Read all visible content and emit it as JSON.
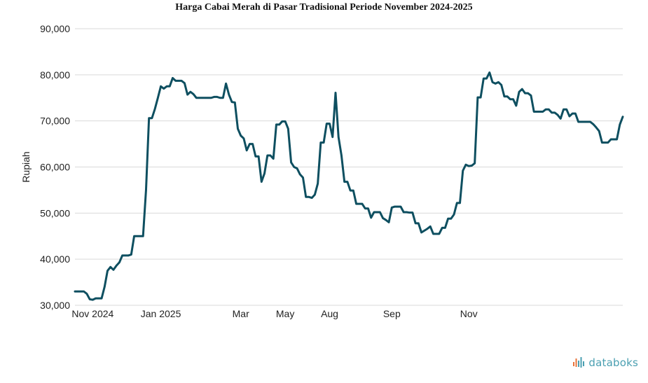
{
  "chart_data": {
    "type": "line",
    "title": "Harga Cabai Merah di Pasar Tradisional Periode November 2024-2025",
    "ylabel": "Rupiah",
    "xlabel": "",
    "ylim": [
      30000,
      90000
    ],
    "y_ticks": [
      "30,000",
      "40,000",
      "50,000",
      "60,000",
      "70,000",
      "80,000",
      "90,000"
    ],
    "x_tick_labels": [
      {
        "label": "Nov 2024",
        "index": 6
      },
      {
        "label": "Jan 2025",
        "index": 29
      },
      {
        "label": "Mar",
        "index": 56
      },
      {
        "label": "May",
        "index": 71
      },
      {
        "label": "Aug",
        "index": 86
      },
      {
        "label": "Sep",
        "index": 107
      },
      {
        "label": "Nov",
        "index": 133
      }
    ],
    "grid": true,
    "line_color": "#0e4f60",
    "series": [
      {
        "values": [
          33000,
          33000,
          33000,
          33000,
          32500,
          31300,
          31200,
          31500,
          31500,
          31500,
          34000,
          37500,
          38300,
          37700,
          38600,
          39300,
          40800,
          40800,
          40800,
          41000,
          45000,
          45000,
          45000,
          45000,
          55000,
          70600,
          70600,
          72600,
          75000,
          77500,
          77000,
          77500,
          77500,
          79300,
          78700,
          78700,
          78700,
          78200,
          75700,
          76300,
          75800,
          75000,
          75000,
          75000,
          75000,
          75000,
          75000,
          75200,
          75200,
          75000,
          75000,
          78100,
          75700,
          74100,
          74000,
          68300,
          66800,
          66200,
          63600,
          65000,
          65000,
          62300,
          62300,
          56800,
          58600,
          62500,
          62500,
          61800,
          69200,
          69200,
          69900,
          69900,
          68300,
          61000,
          60000,
          59700,
          58400,
          57700,
          53500,
          53500,
          53300,
          54000,
          56400,
          65300,
          65300,
          69400,
          69400,
          66500,
          76100,
          66500,
          62500,
          56800,
          56800,
          54900,
          54900,
          52000,
          52000,
          52000,
          51000,
          51000,
          49000,
          50200,
          50200,
          50200,
          48900,
          48500,
          48000,
          51200,
          51400,
          51400,
          51400,
          50200,
          50200,
          50100,
          50100,
          47800,
          47800,
          45800,
          46200,
          46600,
          47100,
          45500,
          45500,
          45500,
          46800,
          46800,
          48800,
          48800,
          49700,
          52200,
          52200,
          59200,
          60500,
          60200,
          60300,
          60800,
          75100,
          75100,
          79200,
          79200,
          80500,
          78400,
          78100,
          78400,
          77800,
          75300,
          75300,
          74700,
          74700,
          73300,
          76300,
          76900,
          76000,
          76000,
          75500,
          72000,
          72000,
          72000,
          72000,
          72500,
          72500,
          71800,
          71800,
          71300,
          70500,
          72500,
          72500,
          71000,
          71600,
          71600,
          69800,
          69800,
          69800,
          69800,
          69800,
          69300,
          68600,
          67800,
          65300,
          65300,
          65300,
          66000,
          66000,
          66000,
          69200,
          70900
        ]
      }
    ]
  },
  "brand": {
    "name": "databoks"
  }
}
